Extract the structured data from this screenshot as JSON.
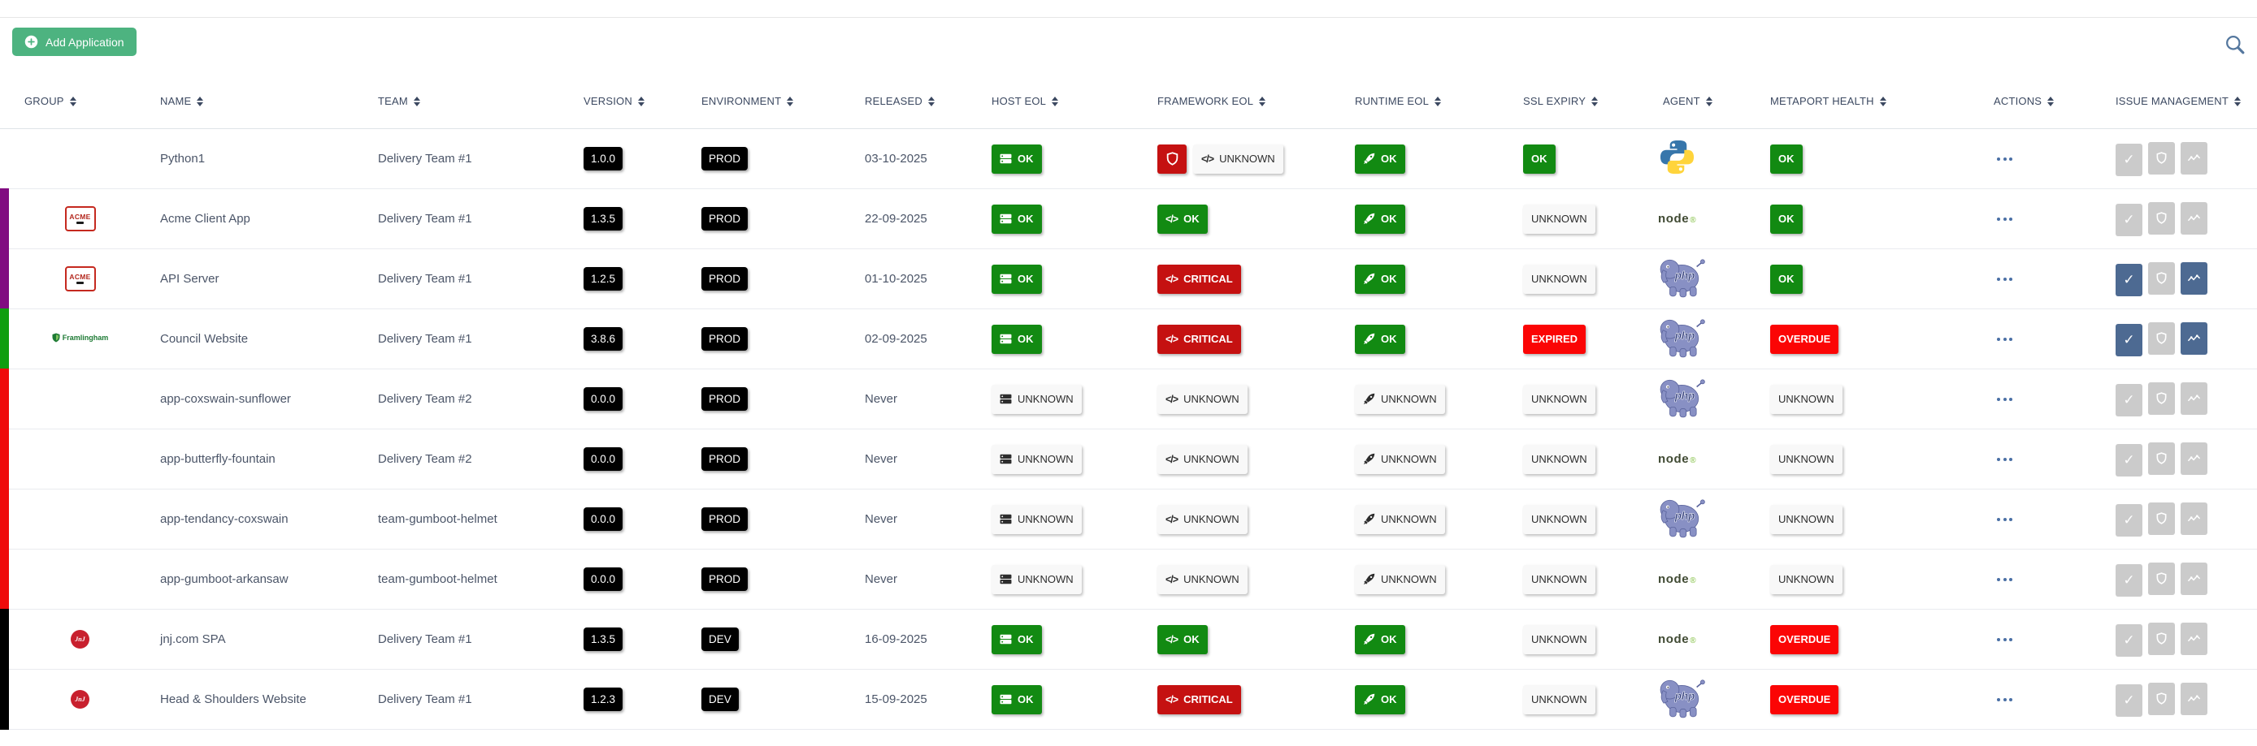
{
  "toolbar": {
    "add_application_label": "Add Application"
  },
  "icons": {
    "add_button": "circle-plus",
    "search": "magnifier",
    "sort": "up-down-arrows",
    "host_eol": "server",
    "framework_eol": "code-brackets",
    "runtime_eol": "rocket",
    "security_alert": "shield",
    "actions": "ellipsis-dots",
    "issue_buttons": [
      "check",
      "shield",
      "trend-graph"
    ]
  },
  "colors": {
    "accent_green": "#4db380",
    "status_ok_green": "#128a12",
    "status_critical_red": "#c51111",
    "status_expired_red": "#fb0505",
    "badge_black": "#000000",
    "badge_unknown_bg": "#f8f8f8",
    "issue_button_active": "#4d6a92",
    "issue_button_disabled": "#cbcbcb",
    "stripe_purple": "#810c81",
    "stripe_green": "#0f9e0f",
    "stripe_red": "#ef0b0b",
    "stripe_black": "#000000"
  },
  "logos": {
    "acme_text": "ACME",
    "framlingham_text": "Framlingham",
    "jnj_text": "JnJ",
    "node_text": "node",
    "php_text": "php"
  },
  "table": {
    "columns": [
      {
        "key": "group",
        "label": "GROUP"
      },
      {
        "key": "name",
        "label": "NAME"
      },
      {
        "key": "team",
        "label": "TEAM"
      },
      {
        "key": "version",
        "label": "VERSION"
      },
      {
        "key": "environment",
        "label": "ENVIRONMENT"
      },
      {
        "key": "released",
        "label": "RELEASED"
      },
      {
        "key": "host_eol",
        "label": "HOST EOL"
      },
      {
        "key": "framework_eol",
        "label": "FRAMEWORK EOL"
      },
      {
        "key": "runtime_eol",
        "label": "RUNTIME EOL"
      },
      {
        "key": "ssl_expiry",
        "label": "SSL EXPIRY"
      },
      {
        "key": "agent",
        "label": "AGENT"
      },
      {
        "key": "metaport_health",
        "label": "METAPORT HEALTH"
      },
      {
        "key": "actions",
        "label": "ACTIONS"
      },
      {
        "key": "issue_management",
        "label": "ISSUE MANAGEMENT"
      }
    ],
    "rows": [
      {
        "stripe": null,
        "group_logo": null,
        "name": "Python1",
        "team": "Delivery Team #1",
        "version": "1.0.0",
        "environment": "PROD",
        "released": "03-10-2025",
        "host_eol": {
          "label": "OK",
          "status": "ok"
        },
        "framework_eol": {
          "alert_shield": true,
          "label": "UNKNOWN",
          "status": "unknown"
        },
        "runtime_eol": {
          "label": "OK",
          "status": "ok"
        },
        "ssl_expiry": {
          "label": "OK",
          "status": "ok"
        },
        "agent": "python",
        "metaport_health": {
          "label": "OK",
          "status": "ok"
        },
        "issue_buttons": [
          "disabled",
          "disabled",
          "disabled"
        ]
      },
      {
        "stripe": "purple",
        "group_logo": "acme",
        "name": "Acme Client App",
        "team": "Delivery Team #1",
        "version": "1.3.5",
        "environment": "PROD",
        "released": "22-09-2025",
        "host_eol": {
          "label": "OK",
          "status": "ok"
        },
        "framework_eol": {
          "alert_shield": false,
          "label": "OK",
          "status": "ok"
        },
        "runtime_eol": {
          "label": "OK",
          "status": "ok"
        },
        "ssl_expiry": {
          "label": "UNKNOWN",
          "status": "unknown"
        },
        "agent": "node",
        "metaport_health": {
          "label": "OK",
          "status": "ok"
        },
        "issue_buttons": [
          "disabled",
          "disabled",
          "disabled"
        ]
      },
      {
        "stripe": "purple",
        "group_logo": "acme",
        "name": "API Server",
        "team": "Delivery Team #1",
        "version": "1.2.5",
        "environment": "PROD",
        "released": "01-10-2025",
        "host_eol": {
          "label": "OK",
          "status": "ok"
        },
        "framework_eol": {
          "alert_shield": false,
          "label": "CRITICAL",
          "status": "critical"
        },
        "runtime_eol": {
          "label": "OK",
          "status": "ok"
        },
        "ssl_expiry": {
          "label": "UNKNOWN",
          "status": "unknown"
        },
        "agent": "php",
        "metaport_health": {
          "label": "OK",
          "status": "ok"
        },
        "issue_buttons": [
          "active",
          "disabled",
          "active"
        ]
      },
      {
        "stripe": "green",
        "group_logo": "framlingham",
        "name": "Council Website",
        "team": "Delivery Team #1",
        "version": "3.8.6",
        "environment": "PROD",
        "released": "02-09-2025",
        "host_eol": {
          "label": "OK",
          "status": "ok"
        },
        "framework_eol": {
          "alert_shield": false,
          "label": "CRITICAL",
          "status": "critical"
        },
        "runtime_eol": {
          "label": "OK",
          "status": "ok"
        },
        "ssl_expiry": {
          "label": "EXPIRED",
          "status": "expired"
        },
        "agent": "php",
        "metaport_health": {
          "label": "OVERDUE",
          "status": "overdue"
        },
        "issue_buttons": [
          "active",
          "disabled",
          "active"
        ]
      },
      {
        "stripe": "red",
        "group_logo": null,
        "name": "app-coxswain-sunflower",
        "team": "Delivery Team #2",
        "version": "0.0.0",
        "environment": "PROD",
        "released": "Never",
        "host_eol": {
          "label": "UNKNOWN",
          "status": "unknown"
        },
        "framework_eol": {
          "alert_shield": false,
          "label": "UNKNOWN",
          "status": "unknown"
        },
        "runtime_eol": {
          "label": "UNKNOWN",
          "status": "unknown"
        },
        "ssl_expiry": {
          "label": "UNKNOWN",
          "status": "unknown"
        },
        "agent": "php",
        "metaport_health": {
          "label": "UNKNOWN",
          "status": "unknown"
        },
        "issue_buttons": [
          "disabled",
          "disabled",
          "disabled"
        ]
      },
      {
        "stripe": "red",
        "group_logo": null,
        "name": "app-butterfly-fountain",
        "team": "Delivery Team #2",
        "version": "0.0.0",
        "environment": "PROD",
        "released": "Never",
        "host_eol": {
          "label": "UNKNOWN",
          "status": "unknown"
        },
        "framework_eol": {
          "alert_shield": false,
          "label": "UNKNOWN",
          "status": "unknown"
        },
        "runtime_eol": {
          "label": "UNKNOWN",
          "status": "unknown"
        },
        "ssl_expiry": {
          "label": "UNKNOWN",
          "status": "unknown"
        },
        "agent": "node",
        "metaport_health": {
          "label": "UNKNOWN",
          "status": "unknown"
        },
        "issue_buttons": [
          "disabled",
          "disabled",
          "disabled"
        ]
      },
      {
        "stripe": "red",
        "group_logo": null,
        "name": "app-tendancy-coxswain",
        "team": "team-gumboot-helmet",
        "version": "0.0.0",
        "environment": "PROD",
        "released": "Never",
        "host_eol": {
          "label": "UNKNOWN",
          "status": "unknown"
        },
        "framework_eol": {
          "alert_shield": false,
          "label": "UNKNOWN",
          "status": "unknown"
        },
        "runtime_eol": {
          "label": "UNKNOWN",
          "status": "unknown"
        },
        "ssl_expiry": {
          "label": "UNKNOWN",
          "status": "unknown"
        },
        "agent": "php",
        "metaport_health": {
          "label": "UNKNOWN",
          "status": "unknown"
        },
        "issue_buttons": [
          "disabled",
          "disabled",
          "disabled"
        ]
      },
      {
        "stripe": "red",
        "group_logo": null,
        "name": "app-gumboot-arkansaw",
        "team": "team-gumboot-helmet",
        "version": "0.0.0",
        "environment": "PROD",
        "released": "Never",
        "host_eol": {
          "label": "UNKNOWN",
          "status": "unknown"
        },
        "framework_eol": {
          "alert_shield": false,
          "label": "UNKNOWN",
          "status": "unknown"
        },
        "runtime_eol": {
          "label": "UNKNOWN",
          "status": "unknown"
        },
        "ssl_expiry": {
          "label": "UNKNOWN",
          "status": "unknown"
        },
        "agent": "node",
        "metaport_health": {
          "label": "UNKNOWN",
          "status": "unknown"
        },
        "issue_buttons": [
          "disabled",
          "disabled",
          "disabled"
        ]
      },
      {
        "stripe": "black",
        "group_logo": "jnj",
        "name": "jnj.com SPA",
        "team": "Delivery Team #1",
        "version": "1.3.5",
        "environment": "DEV",
        "released": "16-09-2025",
        "host_eol": {
          "label": "OK",
          "status": "ok"
        },
        "framework_eol": {
          "alert_shield": false,
          "label": "OK",
          "status": "ok"
        },
        "runtime_eol": {
          "label": "OK",
          "status": "ok"
        },
        "ssl_expiry": {
          "label": "UNKNOWN",
          "status": "unknown"
        },
        "agent": "node",
        "metaport_health": {
          "label": "OVERDUE",
          "status": "overdue"
        },
        "issue_buttons": [
          "disabled",
          "disabled",
          "disabled"
        ]
      },
      {
        "stripe": "black",
        "group_logo": "jnj",
        "name": "Head & Shoulders Website",
        "team": "Delivery Team #1",
        "version": "1.2.3",
        "environment": "DEV",
        "released": "15-09-2025",
        "host_eol": {
          "label": "OK",
          "status": "ok"
        },
        "framework_eol": {
          "alert_shield": false,
          "label": "CRITICAL",
          "status": "critical"
        },
        "runtime_eol": {
          "label": "OK",
          "status": "ok"
        },
        "ssl_expiry": {
          "label": "UNKNOWN",
          "status": "unknown"
        },
        "agent": "php",
        "metaport_health": {
          "label": "OVERDUE",
          "status": "overdue"
        },
        "issue_buttons": [
          "disabled",
          "disabled",
          "disabled"
        ]
      }
    ]
  }
}
